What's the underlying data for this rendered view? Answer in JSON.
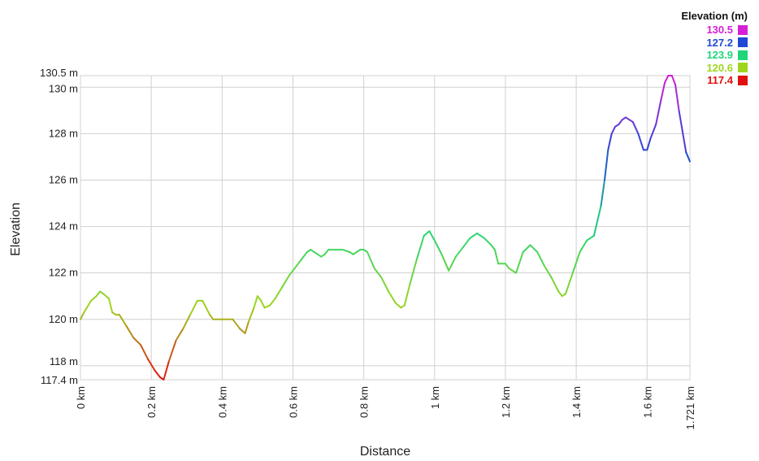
{
  "chart_data": {
    "type": "line",
    "xlabel": "Distance",
    "ylabel": "Elevation",
    "xlim": [
      0,
      1.721
    ],
    "ylim": [
      117.4,
      130.5
    ],
    "grid": true,
    "x_ticks": [
      {
        "value": 0,
        "label": "0 km"
      },
      {
        "value": 0.2,
        "label": "0.2 km"
      },
      {
        "value": 0.4,
        "label": "0.4 km"
      },
      {
        "value": 0.6,
        "label": "0.6 km"
      },
      {
        "value": 0.8,
        "label": "0.8 km"
      },
      {
        "value": 1.0,
        "label": "1 km"
      },
      {
        "value": 1.2,
        "label": "1.2 km"
      },
      {
        "value": 1.4,
        "label": "1.4 km"
      },
      {
        "value": 1.6,
        "label": "1.6 km"
      },
      {
        "value": 1.721,
        "label": "1.721 km"
      }
    ],
    "y_ticks": [
      {
        "value": 117.4,
        "label": "117.4 m"
      },
      {
        "value": 118,
        "label": "118 m"
      },
      {
        "value": 120,
        "label": "120 m"
      },
      {
        "value": 122,
        "label": "122 m"
      },
      {
        "value": 124,
        "label": "124 m"
      },
      {
        "value": 126,
        "label": "126 m"
      },
      {
        "value": 128,
        "label": "128 m"
      },
      {
        "value": 130,
        "label": "130 m"
      },
      {
        "value": 130.5,
        "label": "130.5 m"
      }
    ],
    "legend": {
      "title": "Elevation (m)",
      "position": "top-right",
      "entries": [
        {
          "label": "130.5",
          "color": "#d61fd6"
        },
        {
          "label": "127.2",
          "color": "#1f48d6"
        },
        {
          "label": "123.9",
          "color": "#1fd67a"
        },
        {
          "label": "120.6",
          "color": "#9ed61f"
        },
        {
          "label": "117.4",
          "color": "#e01010"
        }
      ]
    },
    "series": [
      {
        "x": [
          0,
          0.01,
          0.03,
          0.045,
          0.055,
          0.065,
          0.08,
          0.09,
          0.1,
          0.11,
          0.13,
          0.15,
          0.17,
          0.19,
          0.21,
          0.225,
          0.235,
          0.25,
          0.27,
          0.29,
          0.31,
          0.33,
          0.345,
          0.365,
          0.375,
          0.4,
          0.42,
          0.43,
          0.45,
          0.465,
          0.475,
          0.49,
          0.5,
          0.51,
          0.52,
          0.535,
          0.55,
          0.57,
          0.59,
          0.6,
          0.62,
          0.64,
          0.65,
          0.66,
          0.68,
          0.69,
          0.7,
          0.72,
          0.74,
          0.76,
          0.77,
          0.78,
          0.79,
          0.8,
          0.81,
          0.83,
          0.85,
          0.87,
          0.89,
          0.905,
          0.915,
          0.93,
          0.95,
          0.97,
          0.985,
          1.0,
          1.02,
          1.04,
          1.06,
          1.08,
          1.1,
          1.12,
          1.14,
          1.16,
          1.17,
          1.18,
          1.2,
          1.21,
          1.23,
          1.25,
          1.27,
          1.29,
          1.31,
          1.33,
          1.35,
          1.36,
          1.37,
          1.39,
          1.41,
          1.43,
          1.45,
          1.47,
          1.48,
          1.49,
          1.5,
          1.51,
          1.52,
          1.53,
          1.54,
          1.56,
          1.575,
          1.59,
          1.6,
          1.61,
          1.625,
          1.64,
          1.65,
          1.66,
          1.67,
          1.68,
          1.69,
          1.71,
          1.721
        ],
        "y": [
          120.0,
          120.3,
          120.8,
          121.0,
          121.2,
          121.1,
          120.9,
          120.3,
          120.2,
          120.2,
          119.7,
          119.2,
          118.9,
          118.3,
          117.8,
          117.5,
          117.4,
          118.2,
          119.1,
          119.6,
          120.2,
          120.8,
          120.8,
          120.2,
          120.0,
          120.0,
          120.0,
          120.0,
          119.6,
          119.4,
          119.9,
          120.5,
          121.0,
          120.8,
          120.5,
          120.6,
          120.9,
          121.4,
          121.9,
          122.1,
          122.5,
          122.9,
          123.0,
          122.9,
          122.7,
          122.8,
          123.0,
          123.0,
          123.0,
          122.9,
          122.8,
          122.9,
          123.0,
          123.0,
          122.9,
          122.2,
          121.8,
          121.2,
          120.7,
          120.5,
          120.6,
          121.5,
          122.6,
          123.6,
          123.8,
          123.4,
          122.8,
          122.1,
          122.7,
          123.1,
          123.5,
          123.7,
          123.5,
          123.2,
          123.0,
          122.4,
          122.4,
          122.2,
          122.0,
          122.9,
          123.2,
          122.9,
          122.3,
          121.8,
          121.2,
          121.0,
          121.1,
          122.0,
          122.9,
          123.4,
          123.6,
          124.9,
          126.0,
          127.3,
          128.0,
          128.3,
          128.4,
          128.6,
          128.7,
          128.5,
          128.0,
          127.3,
          127.3,
          127.8,
          128.4,
          129.5,
          130.2,
          130.5,
          130.5,
          130.1,
          129.0,
          127.2,
          126.8
        ]
      }
    ]
  }
}
